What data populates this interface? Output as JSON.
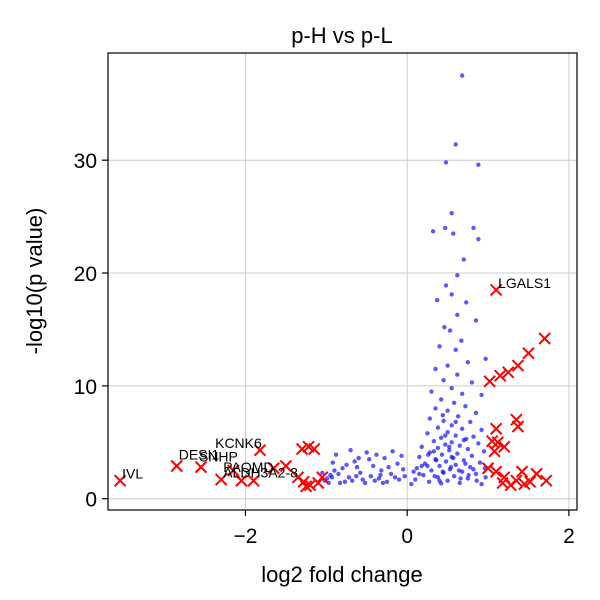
{
  "chart_data": {
    "type": "scatter",
    "title": "p-H vs p-L",
    "xlabel": "log2 fold change",
    "ylabel": "-log10(p value)",
    "xlim": [
      -3.7,
      2.1
    ],
    "ylim": [
      -1,
      39.5
    ],
    "xticks": [
      -2,
      0,
      2
    ],
    "xtick_labels": [
      "−2",
      "0",
      "2"
    ],
    "yticks": [
      0,
      10,
      20,
      30
    ],
    "ytick_labels": [
      "0",
      "10",
      "20",
      "30"
    ],
    "grid": true,
    "colors": {
      "background": "#ffffff",
      "nonsig": "#0000ff",
      "sig": "#ff0000",
      "grid": "#cccccc"
    },
    "series": [
      {
        "marker": "dot",
        "color": "#0000ff",
        "points": [
          [
            0.68,
            37.5
          ],
          [
            0.6,
            31.4
          ],
          [
            0.48,
            29.8
          ],
          [
            0.88,
            29.6
          ],
          [
            0.55,
            25.3
          ],
          [
            0.32,
            23.7
          ],
          [
            0.47,
            24
          ],
          [
            0.57,
            23.5
          ],
          [
            0.82,
            24
          ],
          [
            0.88,
            23
          ],
          [
            0.7,
            21.2
          ],
          [
            0.62,
            19.8
          ],
          [
            0.48,
            18.9
          ],
          [
            0.55,
            18.1
          ],
          [
            0.73,
            17.4
          ],
          [
            0.37,
            17.6
          ],
          [
            0.62,
            16.3
          ],
          [
            0.46,
            15.2
          ],
          [
            0.85,
            15.8
          ],
          [
            0.53,
            14.9
          ],
          [
            0.67,
            14
          ],
          [
            0.4,
            13.5
          ],
          [
            0.6,
            13.2
          ],
          [
            0.97,
            12.4
          ],
          [
            0.75,
            12.1
          ],
          [
            0.5,
            11.8
          ],
          [
            0.35,
            11.5
          ],
          [
            0.62,
            11
          ],
          [
            0.45,
            10.5
          ],
          [
            0.8,
            10.3
          ],
          [
            0.55,
            9.8
          ],
          [
            0.3,
            9.5
          ],
          [
            0.68,
            9.3
          ],
          [
            0.92,
            9.2
          ],
          [
            0.42,
            8.8
          ],
          [
            0.58,
            8.5
          ],
          [
            0.72,
            8.2
          ],
          [
            0.35,
            8
          ],
          [
            0.5,
            7.8
          ],
          [
            0.85,
            7.6
          ],
          [
            0.63,
            7.3
          ],
          [
            0.28,
            7.1
          ],
          [
            0.45,
            6.9
          ],
          [
            0.78,
            6.8
          ],
          [
            0.55,
            6.5
          ],
          [
            0.38,
            6.3
          ],
          [
            0.68,
            6.2
          ],
          [
            0.92,
            6.1
          ],
          [
            0.5,
            5.9
          ],
          [
            0.25,
            5.8
          ],
          [
            0.6,
            5.6
          ],
          [
            0.82,
            5.5
          ],
          [
            0.42,
            5.4
          ],
          [
            0.7,
            5.2
          ],
          [
            0.33,
            5.1
          ],
          [
            0.55,
            5
          ],
          [
            0.88,
            4.9
          ],
          [
            0.47,
            4.8
          ],
          [
            0.65,
            4.7
          ],
          [
            0.18,
            4.6
          ],
          [
            0.38,
            4.5
          ],
          [
            0.75,
            4.4
          ],
          [
            0.52,
            4.3
          ],
          [
            0.95,
            4.2
          ],
          [
            0.28,
            4.1
          ],
          [
            0.62,
            4
          ],
          [
            0.43,
            3.9
          ],
          [
            0.8,
            3.8
          ],
          [
            0.15,
            3.7
          ],
          [
            0.57,
            3.6
          ],
          [
            0.35,
            3.5
          ],
          [
            0.7,
            3.4
          ],
          [
            0.48,
            3.3
          ],
          [
            0.9,
            3.2
          ],
          [
            0.22,
            3.1
          ],
          [
            0.6,
            3
          ],
          [
            0.4,
            2.9
          ],
          [
            0.78,
            2.8
          ],
          [
            0.12,
            2.7
          ],
          [
            0.53,
            2.6
          ],
          [
            0.3,
            2.5
          ],
          [
            0.68,
            2.4
          ],
          [
            0.45,
            2.3
          ],
          [
            0.85,
            2.2
          ],
          [
            0.2,
            2.1
          ],
          [
            0.58,
            2
          ],
          [
            0.38,
            1.9
          ],
          [
            0.75,
            1.8
          ],
          [
            0.1,
            1.7
          ],
          [
            0.5,
            1.6
          ],
          [
            0.27,
            1.5
          ],
          [
            0.65,
            1.4
          ],
          [
            0.42,
            1.35
          ],
          [
            0.92,
            1.3
          ],
          [
            0.05,
            1.3
          ],
          [
            0.55,
            3.7
          ],
          [
            0.33,
            4.2
          ],
          [
            0.72,
            3.1
          ],
          [
            0.47,
            5.6
          ],
          [
            0.6,
            6.8
          ],
          [
            0.25,
            2.9
          ],
          [
            0.82,
            2.6
          ],
          [
            0.15,
            2.2
          ],
          [
            0.97,
            1.9
          ],
          [
            0.4,
            1.6
          ],
          [
            0.64,
            2.5
          ],
          [
            0.36,
            3.4
          ],
          [
            0.52,
            4.6
          ],
          [
            0.73,
            5.3
          ],
          [
            0.44,
            7.4
          ],
          [
            -0.05,
            2.6
          ],
          [
            -0.12,
            3.1
          ],
          [
            -0.2,
            2.2
          ],
          [
            -0.28,
            3.6
          ],
          [
            -0.35,
            1.8
          ],
          [
            -0.42,
            2.9
          ],
          [
            -0.5,
            4.1
          ],
          [
            -0.58,
            2.3
          ],
          [
            -0.65,
            3.3
          ],
          [
            -0.72,
            1.9
          ],
          [
            -0.8,
            2.7
          ],
          [
            -0.88,
            3.9
          ],
          [
            -0.95,
            2.1
          ],
          [
            -1.02,
            1.6
          ],
          [
            -0.1,
            1.7
          ],
          [
            -0.18,
            4.2
          ],
          [
            -0.25,
            1.5
          ],
          [
            -0.32,
            2.5
          ],
          [
            -0.4,
            1.6
          ],
          [
            -0.47,
            3.5
          ],
          [
            -0.55,
            1.7
          ],
          [
            -0.62,
            2.8
          ],
          [
            -0.7,
            4.3
          ],
          [
            -0.77,
            1.5
          ],
          [
            -0.85,
            2.2
          ],
          [
            -0.92,
            3.2
          ],
          [
            -0.99,
            1.8
          ],
          [
            -0.07,
            3.8
          ],
          [
            -0.15,
            1.9
          ],
          [
            -0.23,
            2.8
          ],
          [
            -0.3,
            1.4
          ],
          [
            -0.38,
            3.9
          ],
          [
            -0.45,
            2
          ],
          [
            -0.52,
            1.4
          ],
          [
            -0.6,
            3.6
          ],
          [
            -0.68,
            1.6
          ],
          [
            -0.75,
            3
          ],
          [
            -0.83,
            1.4
          ],
          [
            -0.9,
            2.5
          ],
          [
            -0.97,
            1.4
          ],
          [
            -1.05,
            2.3
          ],
          [
            -0.03,
            2
          ],
          [
            -0.33,
            2.1
          ],
          [
            -0.63,
            2
          ],
          [
            -0.93,
            1.9
          ],
          [
            0.08,
            2.4
          ],
          [
            0.18,
            2.9
          ],
          [
            0.26,
            3.9
          ],
          [
            0.34,
            2
          ],
          [
            0.44,
            2.4
          ],
          [
            0.54,
            2.8
          ],
          [
            0.66,
            1.8
          ],
          [
            0.76,
            2.1
          ],
          [
            0.86,
            1.6
          ],
          [
            0.96,
            2.7
          ]
        ]
      },
      {
        "marker": "x",
        "color": "#ff0000",
        "points": [
          [
            1.1,
            18.5
          ],
          [
            1.7,
            14.2
          ],
          [
            1.5,
            12.9
          ],
          [
            1.37,
            11.8
          ],
          [
            1.25,
            11.2
          ],
          [
            1.15,
            10.9
          ],
          [
            1.02,
            10.4
          ],
          [
            1.35,
            7
          ],
          [
            1.37,
            6.4
          ],
          [
            1.1,
            6.2
          ],
          [
            1.05,
            5.1
          ],
          [
            1.12,
            5
          ],
          [
            1.2,
            4.6
          ],
          [
            1.08,
            4.2
          ],
          [
            1.0,
            2.7
          ],
          [
            1.1,
            2.4
          ],
          [
            1.2,
            1.9
          ],
          [
            1.35,
            1.6
          ],
          [
            1.45,
            1.3
          ],
          [
            1.6,
            2.2
          ],
          [
            1.72,
            1.6
          ],
          [
            1.42,
            2.4
          ],
          [
            1.28,
            1.2
          ],
          [
            1.52,
            1.5
          ],
          [
            1.18,
            1.4
          ],
          [
            -3.55,
            1.6
          ],
          [
            -2.85,
            2.9
          ],
          [
            -2.55,
            2.8
          ],
          [
            -2.3,
            1.7
          ],
          [
            -2.15,
            2.5
          ],
          [
            -2.05,
            1.6
          ],
          [
            -1.9,
            1.6
          ],
          [
            -1.82,
            4.3
          ],
          [
            -1.65,
            2.7
          ],
          [
            -1.5,
            2.9
          ],
          [
            -1.3,
            4.4
          ],
          [
            -1.22,
            4.6
          ],
          [
            -1.15,
            4.4
          ],
          [
            -1.35,
            1.9
          ],
          [
            -1.28,
            1.5
          ],
          [
            -1.2,
            1.2
          ],
          [
            -1.1,
            1.4
          ],
          [
            -1.05,
            1.9
          ],
          [
            -1.25,
            1.1
          ]
        ]
      }
    ],
    "annotations": [
      {
        "text": "LGALS1",
        "x": 1.1,
        "y": 18.5
      },
      {
        "text": "KCNK6",
        "x": -2.4,
        "y": 4.3
      },
      {
        "text": "DESI1",
        "x": -2.85,
        "y": 3.3
      },
      {
        "text": "SNHP",
        "x": -2.6,
        "y": 3.1
      },
      {
        "text": "PAQMD",
        "x": -2.3,
        "y": 2.2
      },
      {
        "text": "ALDH3A2-8",
        "x": -2.3,
        "y": 1.7
      },
      {
        "text": "IVL",
        "x": -3.55,
        "y": 1.6
      }
    ]
  }
}
